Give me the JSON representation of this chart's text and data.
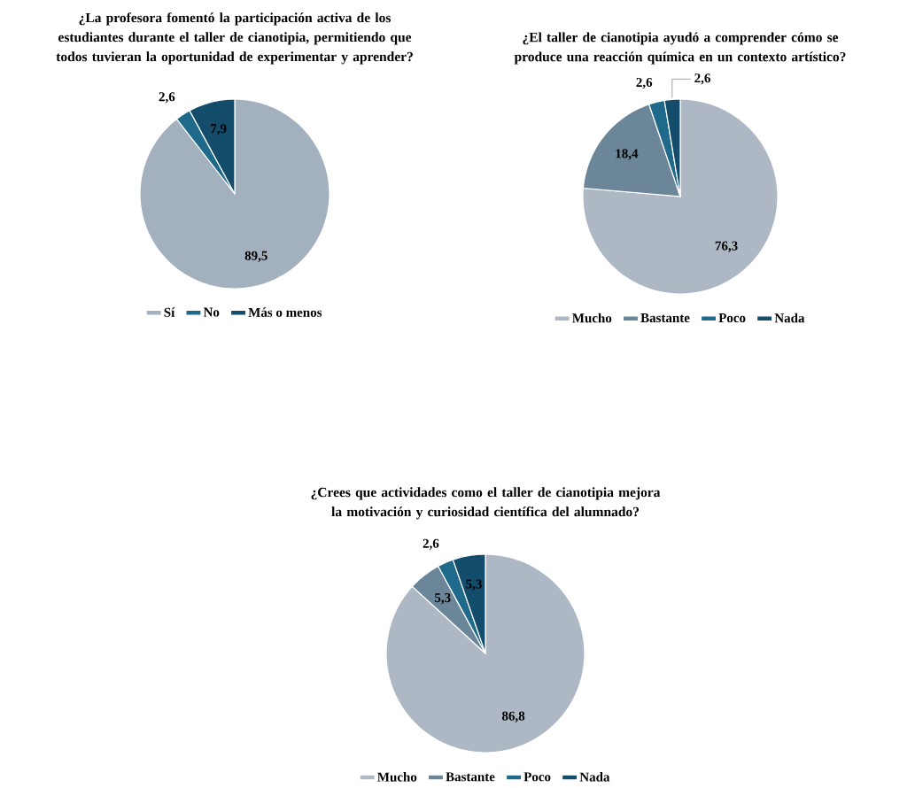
{
  "chart_data": [
    {
      "type": "pie",
      "title": "¿La profesora fomentó la participación activa de los estudiantes durante el taller de cianotipia, permitiendo que todos tuvieran la oportunidad de experimentar y aprender?",
      "categories": [
        "Sí",
        "No",
        "Más o menos"
      ],
      "values": [
        89.5,
        2.6,
        7.9
      ],
      "value_labels": [
        "89,5",
        "2,6",
        "7,9"
      ],
      "colors": [
        "#a3b0bd",
        "#1f6a8a",
        "#134d6b"
      ],
      "legend": "bottom"
    },
    {
      "type": "pie",
      "title": "¿El taller de cianotipia ayudó a comprender cómo se produce una reacción química en un contexto artístico?",
      "categories": [
        "Mucho",
        "Bastante",
        "Poco",
        "Nada"
      ],
      "values": [
        76.3,
        18.4,
        2.6,
        2.6
      ],
      "value_labels": [
        "76,3",
        "18,4",
        "2,6",
        "2,6"
      ],
      "colors": [
        "#adb8c4",
        "#6b8599",
        "#1f6a8a",
        "#134d6b"
      ],
      "legend": "bottom"
    },
    {
      "type": "pie",
      "title": "¿Crees que actividades como el taller de cianotipia mejora la motivación y curiosidad científica del alumnado?",
      "categories": [
        "Mucho",
        "Bastante",
        "Poco",
        "Nada"
      ],
      "values": [
        86.8,
        5.3,
        2.6,
        5.3
      ],
      "value_labels": [
        "86,8",
        "5,3",
        "2,6",
        "5,3"
      ],
      "colors": [
        "#adb8c4",
        "#6b8599",
        "#1f6a8a",
        "#134d6b"
      ],
      "legend": "bottom"
    }
  ]
}
